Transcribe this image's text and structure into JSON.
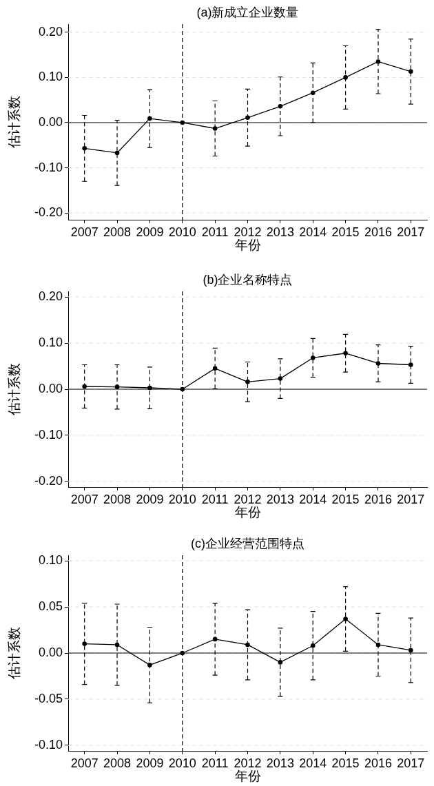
{
  "chart_data": [
    {
      "type": "line",
      "title": "(a)新成立企业数量",
      "xlabel": "年份",
      "ylabel": "估计系数",
      "x": [
        2007,
        2008,
        2009,
        2010,
        2011,
        2012,
        2013,
        2014,
        2015,
        2016,
        2017
      ],
      "xlim": [
        2006.5,
        2017.5
      ],
      "xticks": [
        2007,
        2008,
        2009,
        2010,
        2011,
        2012,
        2013,
        2014,
        2015,
        2016,
        2017
      ],
      "ylim": [
        -0.215,
        0.218
      ],
      "yticks": [
        {
          "value": -0.2,
          "label": "-0.20"
        },
        {
          "value": -0.1,
          "label": "-0.10"
        },
        {
          "value": 0,
          "label": "0.00"
        },
        {
          "value": 0.1,
          "label": "0.10"
        },
        {
          "value": 0.2,
          "label": "0.20"
        }
      ],
      "grid": "y",
      "marker": "circle",
      "line_style": "solid",
      "color": "#000000",
      "values": [
        -0.057,
        -0.067,
        0.009,
        0,
        -0.013,
        0.011,
        0.036,
        0.066,
        0.1,
        0.135,
        0.113
      ],
      "errors": [
        0.073,
        0.072,
        0.064,
        null,
        0.061,
        0.063,
        0.065,
        0.066,
        0.07,
        0.071,
        0.072
      ],
      "ref_lines": [
        {
          "axis": "y",
          "value": 0,
          "color": "#000000",
          "line_style": "solid"
        },
        {
          "axis": "x",
          "value": 2010,
          "color": "#000000",
          "line_style": "dashed"
        }
      ]
    },
    {
      "type": "line",
      "title": "(b)企业名称特点",
      "xlabel": "年份",
      "ylabel": "估计系数",
      "x": [
        2007,
        2008,
        2009,
        2010,
        2011,
        2012,
        2013,
        2014,
        2015,
        2016,
        2017
      ],
      "xlim": [
        2006.5,
        2017.5
      ],
      "xticks": [
        2007,
        2008,
        2009,
        2010,
        2011,
        2012,
        2013,
        2014,
        2015,
        2016,
        2017
      ],
      "ylim": [
        -0.212,
        0.212
      ],
      "yticks": [
        {
          "value": -0.2,
          "label": "-0.20"
        },
        {
          "value": -0.1,
          "label": "-0.10"
        },
        {
          "value": 0,
          "label": "0.00"
        },
        {
          "value": 0.1,
          "label": "0.10"
        },
        {
          "value": 0.2,
          "label": "0.20"
        }
      ],
      "grid": "y",
      "marker": "circle",
      "line_style": "solid",
      "color": "#000000",
      "values": [
        0.006,
        0.005,
        0.003,
        0,
        0.045,
        0.016,
        0.023,
        0.068,
        0.078,
        0.056,
        0.053
      ],
      "errors": [
        0.047,
        0.048,
        0.045,
        null,
        0.044,
        0.043,
        0.043,
        0.042,
        0.041,
        0.04,
        0.04
      ],
      "ref_lines": [
        {
          "axis": "y",
          "value": 0,
          "color": "#000000",
          "line_style": "solid"
        },
        {
          "axis": "x",
          "value": 2010,
          "color": "#000000",
          "line_style": "dashed"
        }
      ]
    },
    {
      "type": "line",
      "title": "(c)企业经营范围特点",
      "xlabel": "年份",
      "ylabel": "估计系数",
      "x": [
        2007,
        2008,
        2009,
        2010,
        2011,
        2012,
        2013,
        2014,
        2015,
        2016,
        2017
      ],
      "xlim": [
        2006.5,
        2017.5
      ],
      "xticks": [
        2007,
        2008,
        2009,
        2010,
        2011,
        2012,
        2013,
        2014,
        2015,
        2016,
        2017
      ],
      "ylim": [
        -0.106,
        0.106
      ],
      "yticks": [
        {
          "value": -0.1,
          "label": "-0.10"
        },
        {
          "value": -0.05,
          "label": "-0.05"
        },
        {
          "value": 0,
          "label": "0.00"
        },
        {
          "value": 0.05,
          "label": "0.05"
        },
        {
          "value": 0.1,
          "label": "0.10"
        }
      ],
      "grid": "y",
      "marker": "circle",
      "line_style": "solid",
      "color": "#000000",
      "values": [
        0.01,
        0.009,
        -0.013,
        0,
        0.015,
        0.009,
        -0.01,
        0.008,
        0.037,
        0.009,
        0.003
      ],
      "errors": [
        0.044,
        0.044,
        0.041,
        null,
        0.039,
        0.038,
        0.037,
        0.037,
        0.035,
        0.034,
        0.035
      ],
      "ref_lines": [
        {
          "axis": "y",
          "value": 0,
          "color": "#000000",
          "line_style": "solid"
        },
        {
          "axis": "x",
          "value": 2010,
          "color": "#000000",
          "line_style": "dashed"
        }
      ]
    }
  ]
}
